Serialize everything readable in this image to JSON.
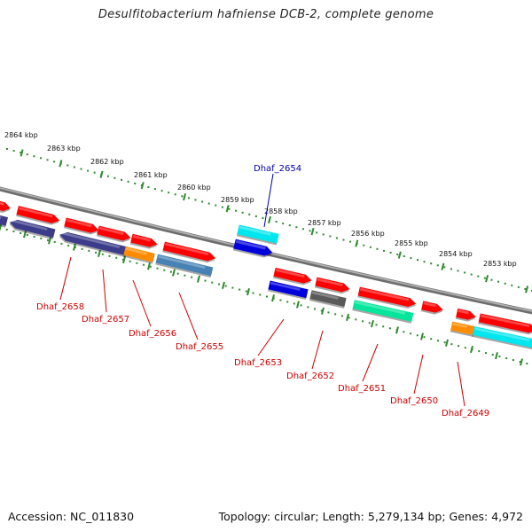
{
  "title": "Desulfitobacterium hafniense DCB-2, complete genome",
  "footer": {
    "accession": "Accession: NC_011830",
    "summary": "Topology: circular; Length: 5,279,134 bp; Genes: 4,972"
  },
  "colors": {
    "forward_gene": "#ff0000",
    "tick": "#2e8b2e",
    "backbone": "#808080",
    "label_default": "#cc0000",
    "label_highlight": "#0000aa"
  },
  "kbp_labels": [
    "2864 kbp",
    "2863 kbp",
    "2862 kbp",
    "2861 kbp",
    "2860 kbp",
    "2859 kbp",
    "2858 kbp",
    "2857 kbp",
    "2856 kbp",
    "2855 kbp",
    "2854 kbp",
    "2853 kbp"
  ],
  "gene_labels": [
    {
      "name": "Dhaf_2658",
      "highlight": false
    },
    {
      "name": "Dhaf_2657",
      "highlight": false
    },
    {
      "name": "Dhaf_2656",
      "highlight": false
    },
    {
      "name": "Dhaf_2655",
      "highlight": false
    },
    {
      "name": "Dhaf_2654",
      "highlight": true
    },
    {
      "name": "Dhaf_2653",
      "highlight": false
    },
    {
      "name": "Dhaf_2652",
      "highlight": false
    },
    {
      "name": "Dhaf_2651",
      "highlight": false
    },
    {
      "name": "Dhaf_2650",
      "highlight": false
    },
    {
      "name": "Dhaf_2649",
      "highlight": false
    }
  ]
}
